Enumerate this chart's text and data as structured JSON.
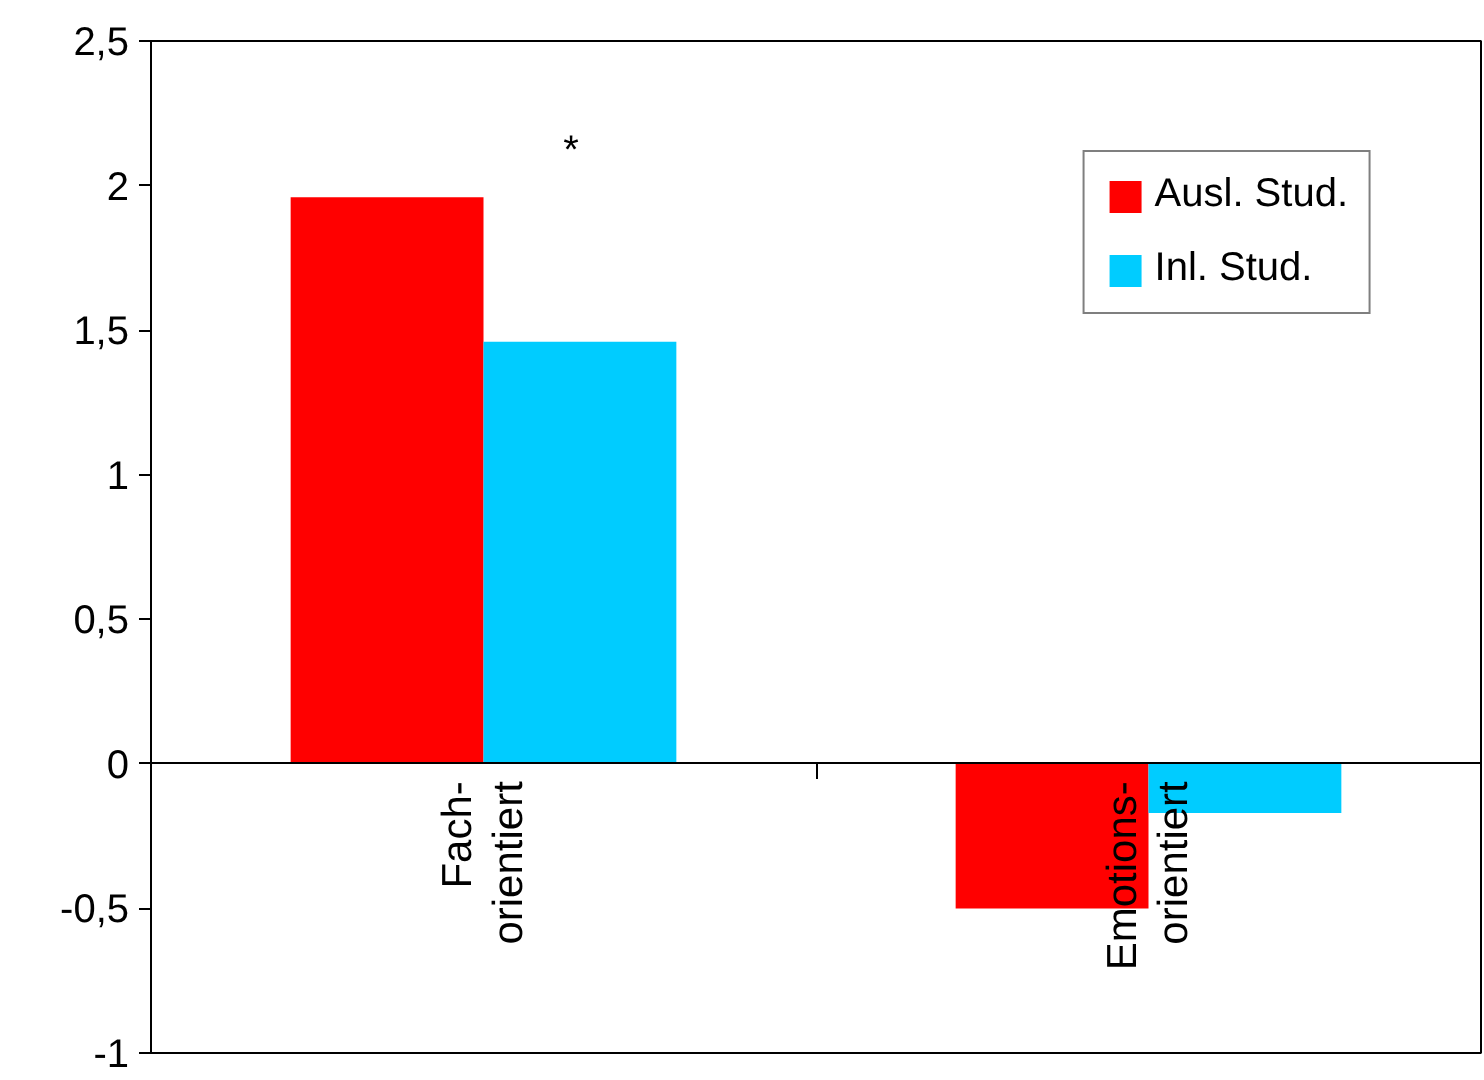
{
  "chart_data": {
    "type": "bar",
    "categories": [
      "Fach-\norientiert",
      "Emotions-\norientiert"
    ],
    "series": [
      {
        "name": "Ausl. Stud.",
        "color": "#ff0000",
        "values": [
          1.96,
          -0.5
        ]
      },
      {
        "name": "Inl. Stud.",
        "color": "#00ccff",
        "values": [
          1.46,
          -0.17
        ]
      }
    ],
    "ylim": [
      -1,
      2.5
    ],
    "yticks": [
      {
        "value": -1,
        "label": "-1"
      },
      {
        "value": -0.5,
        "label": "-0,5"
      },
      {
        "value": 0,
        "label": "0"
      },
      {
        "value": 0.5,
        "label": "0,5"
      },
      {
        "value": 1,
        "label": "1"
      },
      {
        "value": 1.5,
        "label": "1,5"
      },
      {
        "value": 2,
        "label": "2"
      },
      {
        "value": 2.5,
        "label": "2,5"
      }
    ],
    "annotations": [
      "*"
    ],
    "grid": false,
    "legend": "top right"
  }
}
